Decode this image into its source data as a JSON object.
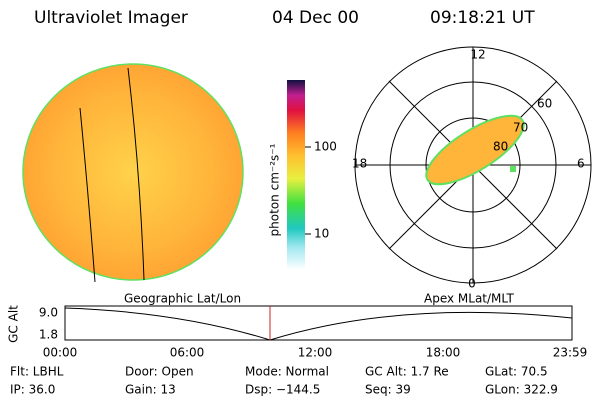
{
  "header": {
    "title": "Ultraviolet Imager",
    "date": "04 Dec 00",
    "time": "09:18:21 UT"
  },
  "colorbar": {
    "label": "photon cm⁻²s⁻¹",
    "ticks": [
      "100",
      "10"
    ]
  },
  "polar": {
    "hour_labels": [
      "12",
      "18",
      "6",
      "0"
    ],
    "lat_labels": [
      "60",
      "70",
      "80"
    ]
  },
  "altitude_plot": {
    "y_label": "GC Alt",
    "left_label": "Geographic Lat/Lon",
    "right_label": "Apex MLat/MLT",
    "y_ticks": [
      "9.0",
      "1.8"
    ],
    "x_ticks": [
      "00:00",
      "06:00",
      "12:00",
      "18:00",
      "23:59"
    ]
  },
  "footer": {
    "rows": [
      [
        "Flt: LBHL",
        "Door: Open",
        "Mode: Normal",
        "GC Alt: 1.7 Re",
        "GLat: 70.5"
      ],
      [
        "IP: 36.0",
        "Gain: 13",
        "Dsp: −144.5",
        "Seq: 39",
        "GLon: 322.9"
      ]
    ]
  }
}
